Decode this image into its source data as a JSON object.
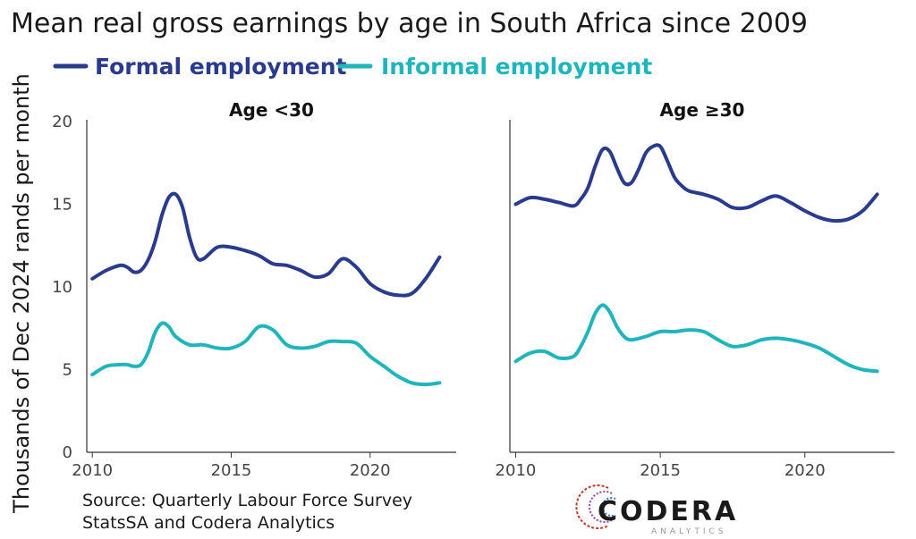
{
  "title": "Mean real gross earnings by age in South Africa since 2009",
  "source": {
    "line1": "Source: Quarterly Labour Force Survey",
    "line2": "StatsSA and Codera Analytics"
  },
  "logo": {
    "name": "CODERA",
    "sub": "ANALYTICS"
  },
  "colors": {
    "formal": "#2a3a8c",
    "informal": "#20b5bd",
    "axis": "#333333"
  },
  "chart_data": {
    "type": "line",
    "ylabel": "Thousands of Dec 2024 rands per month",
    "ylim": [
      0,
      20
    ],
    "yticks": [
      0,
      5,
      10,
      15,
      20
    ],
    "xlim": [
      2009.8,
      2023.1
    ],
    "xticks": [
      2010,
      2015,
      2020
    ],
    "legend": {
      "position": "top-left",
      "entries": [
        "Formal employment",
        "Informal employment"
      ]
    },
    "panels": [
      {
        "title": "Age <30",
        "series": [
          {
            "name": "Formal employment",
            "x": [
              2010,
              2010.5,
              2011,
              2011.25,
              2011.5,
              2011.75,
              2012,
              2012.25,
              2012.5,
              2012.75,
              2013,
              2013.25,
              2013.5,
              2013.75,
              2014,
              2014.5,
              2015,
              2015.5,
              2016,
              2016.5,
              2017,
              2017.5,
              2018,
              2018.5,
              2019,
              2019.5,
              2020,
              2020.5,
              2021,
              2021.5,
              2022,
              2022.5
            ],
            "y": [
              10.5,
              11.0,
              11.3,
              11.2,
              10.9,
              11.0,
              11.6,
              12.7,
              14.3,
              15.4,
              15.6,
              14.8,
              13.0,
              11.8,
              11.7,
              12.4,
              12.4,
              12.2,
              11.9,
              11.4,
              11.3,
              11.0,
              10.6,
              10.8,
              11.7,
              11.2,
              10.2,
              9.7,
              9.5,
              9.6,
              10.5,
              11.8
            ]
          },
          {
            "name": "Informal employment",
            "x": [
              2010,
              2010.5,
              2011,
              2011.25,
              2011.5,
              2011.75,
              2012,
              2012.25,
              2012.5,
              2012.75,
              2013,
              2013.5,
              2014,
              2014.5,
              2015,
              2015.5,
              2016,
              2016.5,
              2017,
              2017.5,
              2018,
              2018.5,
              2019,
              2019.5,
              2020,
              2020.5,
              2021,
              2021.5,
              2022,
              2022.5
            ],
            "y": [
              4.7,
              5.2,
              5.3,
              5.3,
              5.2,
              5.3,
              6.0,
              7.2,
              7.8,
              7.6,
              7.0,
              6.5,
              6.5,
              6.3,
              6.3,
              6.7,
              7.6,
              7.4,
              6.5,
              6.3,
              6.4,
              6.7,
              6.7,
              6.6,
              5.8,
              5.2,
              4.6,
              4.2,
              4.1,
              4.2
            ]
          }
        ]
      },
      {
        "title": "Age ≥30",
        "series": [
          {
            "name": "Formal employment",
            "x": [
              2010,
              2010.5,
              2011,
              2011.5,
              2012,
              2012.25,
              2012.5,
              2012.75,
              2013,
              2013.25,
              2013.5,
              2013.75,
              2014,
              2014.25,
              2014.5,
              2014.75,
              2015,
              2015.25,
              2015.5,
              2015.75,
              2016,
              2016.5,
              2017,
              2017.5,
              2018,
              2018.5,
              2019,
              2019.5,
              2020,
              2020.5,
              2021,
              2021.5,
              2022,
              2022.5
            ],
            "y": [
              15.0,
              15.4,
              15.3,
              15.1,
              14.9,
              15.3,
              16.0,
              17.3,
              18.3,
              18.2,
              17.2,
              16.3,
              16.3,
              17.1,
              18.1,
              18.5,
              18.5,
              17.6,
              16.6,
              16.1,
              15.8,
              15.6,
              15.3,
              14.8,
              14.8,
              15.2,
              15.5,
              15.1,
              14.6,
              14.2,
              14.0,
              14.1,
              14.6,
              15.6
            ]
          },
          {
            "name": "Informal employment",
            "x": [
              2010,
              2010.5,
              2011,
              2011.5,
              2012,
              2012.25,
              2012.5,
              2012.75,
              2013,
              2013.25,
              2013.5,
              2013.75,
              2014,
              2014.5,
              2015,
              2015.5,
              2016,
              2016.5,
              2017,
              2017.5,
              2018,
              2018.5,
              2019,
              2019.5,
              2020,
              2020.5,
              2021,
              2021.5,
              2022,
              2022.5
            ],
            "y": [
              5.5,
              6.0,
              6.1,
              5.7,
              5.8,
              6.4,
              7.3,
              8.4,
              8.9,
              8.5,
              7.6,
              7.0,
              6.8,
              7.0,
              7.3,
              7.3,
              7.4,
              7.3,
              6.8,
              6.4,
              6.5,
              6.8,
              6.9,
              6.8,
              6.6,
              6.3,
              5.8,
              5.3,
              5.0,
              4.9
            ]
          }
        ]
      }
    ]
  }
}
